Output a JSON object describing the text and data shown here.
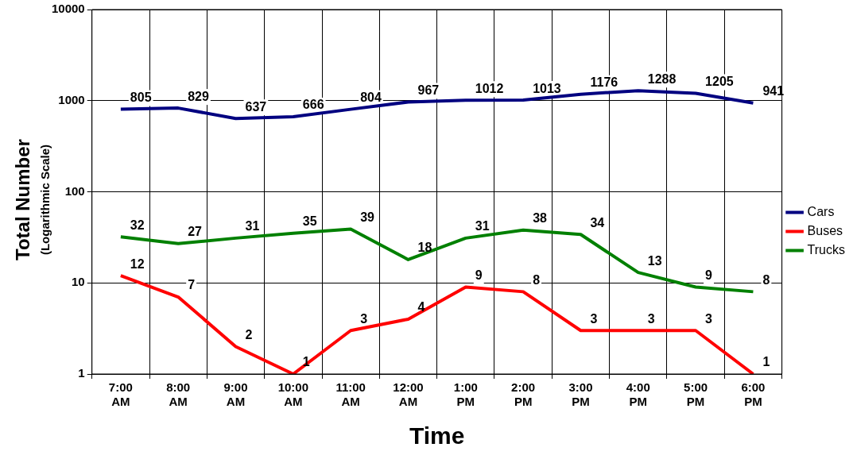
{
  "chart_data": {
    "type": "line",
    "xlabel": "Time",
    "ylabel": "Total Number",
    "annotations": [
      "(Logarithmic Scale)"
    ],
    "categories": [
      "7:00 AM",
      "8:00 AM",
      "9:00 AM",
      "10:00 AM",
      "11:00 AM",
      "12:00 AM",
      "1:00 PM",
      "2:00 PM",
      "3:00 PM",
      "4:00 PM",
      "5:00 PM",
      "6:00 PM"
    ],
    "series": [
      {
        "name": "Cars",
        "color": "#000080",
        "values": [
          805,
          829,
          637,
          666,
          804,
          967,
          1012,
          1013,
          1176,
          1288,
          1205,
          941
        ]
      },
      {
        "name": "Buses",
        "color": "#ff0000",
        "values": [
          12,
          7,
          2,
          1,
          3,
          4,
          9,
          8,
          3,
          3,
          3,
          1
        ]
      },
      {
        "name": "Trucks",
        "color": "#008000",
        "values": [
          32,
          27,
          31,
          35,
          39,
          18,
          31,
          38,
          34,
          13,
          9,
          8
        ]
      }
    ],
    "ylim": [
      1,
      10000
    ],
    "yticks": [
      1,
      10,
      100,
      1000,
      10000
    ],
    "log": true,
    "grid": true,
    "legend": "right",
    "marker": "none",
    "line_style": "solid",
    "data_labels": true
  }
}
